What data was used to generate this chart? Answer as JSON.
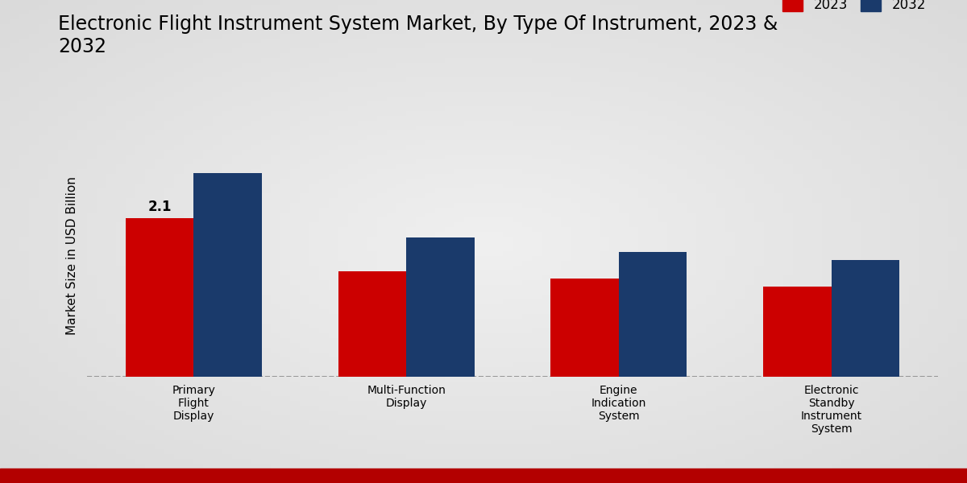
{
  "title": "Electronic Flight Instrument System Market, By Type Of Instrument, 2023 &\n2032",
  "ylabel": "Market Size in USD Billion",
  "categories": [
    "Primary\nFlight\nDisplay",
    "Multi-Function\nDisplay",
    "Engine\nIndication\nSystem",
    "Electronic\nStandby\nInstrument\nSystem"
  ],
  "values_2023": [
    2.1,
    1.4,
    1.3,
    1.2
  ],
  "values_2032": [
    2.7,
    1.85,
    1.65,
    1.55
  ],
  "color_2023": "#cc0000",
  "color_2032": "#1a3a6b",
  "annotation_2023": "2.1",
  "background_color": "#e8e8e8",
  "legend_labels": [
    "2023",
    "2032"
  ],
  "bar_width": 0.32,
  "ylim": [
    0,
    3.2
  ],
  "title_fontsize": 17,
  "label_fontsize": 11,
  "tick_fontsize": 10,
  "bottom_bar_color": "#b30000",
  "bottom_bar_height": 0.03
}
